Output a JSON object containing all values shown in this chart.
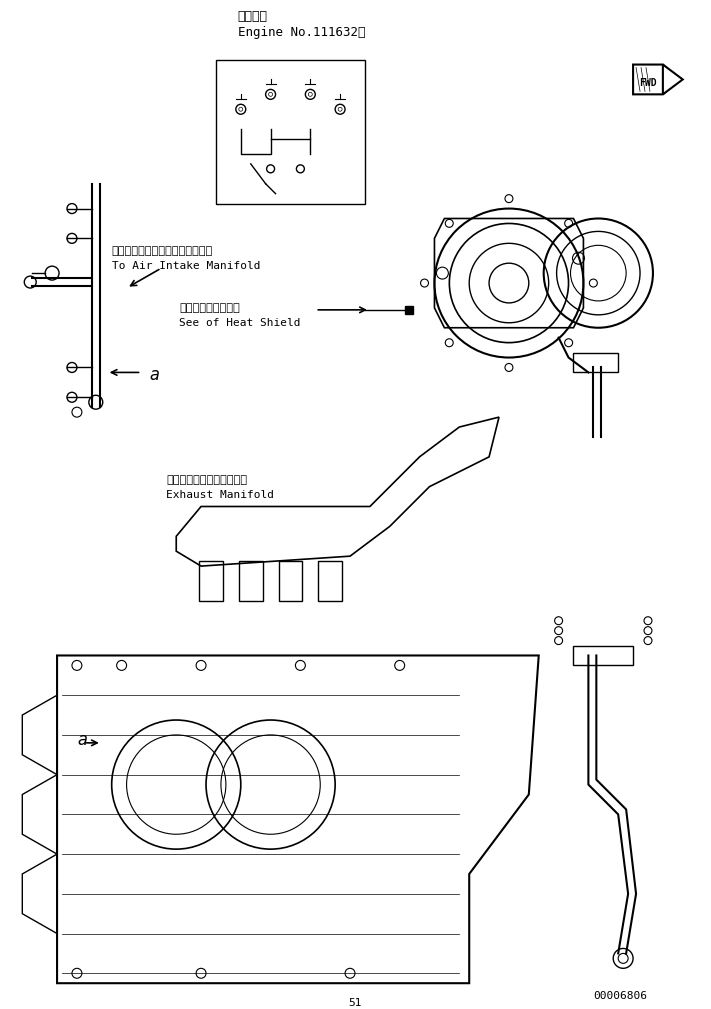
{
  "title_japanese": "適用号機",
  "title_english": "Engine No.111632～",
  "label1_japanese": "エアーインテークマニホールドへ",
  "label1_english": "To Air Intake Manifold",
  "label2_japanese": "ヒートシールド参照",
  "label2_english": "See of Heat Shield",
  "label3_japanese": "エキゾーストマニホールド",
  "label3_english": "Exhaust Manifold",
  "label_a1": "a",
  "label_a2": "a",
  "part_number": "00006806",
  "bg_color": "#ffffff",
  "line_color": "#000000",
  "fig_width": 7.11,
  "fig_height": 10.09,
  "dpi": 100
}
